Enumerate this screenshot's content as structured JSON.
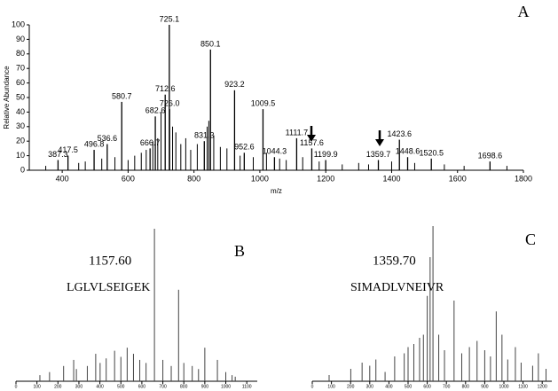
{
  "chart_data": [
    {
      "type": "bar",
      "panel": "A",
      "x_label": "m/z",
      "y_label": "Relative Abundance",
      "xlim": [
        300,
        1800
      ],
      "xticks": [
        400,
        600,
        800,
        1000,
        1200,
        1400,
        1600,
        1800
      ],
      "ylim": [
        0,
        100
      ],
      "yticks": [
        0,
        10,
        20,
        30,
        40,
        50,
        60,
        70,
        80,
        90,
        100
      ],
      "color": "#000000",
      "x": [
        387.3,
        417.5,
        496.8,
        536.6,
        580.7,
        666.7,
        682.6,
        712.6,
        725.1,
        726,
        831.3,
        850.1,
        923.2,
        952.6,
        1009.5,
        1044.3,
        1111.7,
        1157.6,
        1199.9,
        1359.7,
        1423.6,
        1448.6,
        1520.5,
        1698.6
      ],
      "labels": [
        "387.3",
        "417.5",
        "496.8",
        "536.6",
        "580.7",
        "666.7",
        "682.6",
        "712.6",
        "725.1",
        "726.0",
        "831.3",
        "850.1",
        "923.2",
        "952.6",
        "1009.5",
        "1044.3",
        "1111.7",
        "1157.6",
        "1199.9",
        "1359.7",
        "1423.6",
        "1448.6",
        "1520.5",
        "1698.6"
      ],
      "values": [
        7,
        10,
        14,
        18,
        47,
        15,
        37,
        52,
        100,
        42,
        20,
        83,
        55,
        12,
        42,
        9,
        22,
        15,
        7,
        7,
        21,
        9,
        8,
        6
      ],
      "minor_x": [
        350,
        450,
        470,
        520,
        560,
        600,
        620,
        640,
        655,
        675,
        690,
        700,
        735,
        745,
        760,
        775,
        790,
        810,
        840,
        845,
        860,
        880,
        900,
        940,
        980,
        1020,
        1060,
        1080,
        1130,
        1180,
        1250,
        1300,
        1330,
        1400,
        1470,
        1560,
        1620,
        1750
      ],
      "minor_values": [
        3,
        5,
        6,
        8,
        9,
        7,
        10,
        12,
        14,
        20,
        22,
        40,
        30,
        26,
        18,
        22,
        14,
        18,
        30,
        34,
        24,
        16,
        15,
        10,
        9,
        12,
        8,
        7,
        9,
        6,
        4,
        5,
        4,
        6,
        5,
        4,
        3,
        3
      ]
    },
    {
      "type": "bar",
      "panel": "B",
      "precursor": "1157.60",
      "sequence": "LGLVLSEIGEK",
      "xlim": [
        0,
        1150
      ],
      "xticks": [
        0,
        100,
        200,
        300,
        400,
        500,
        600,
        700,
        800,
        900,
        1000,
        1100
      ],
      "ylim": [
        0,
        100
      ],
      "color": "#444444",
      "x": [
        114,
        160,
        227,
        275,
        288,
        340,
        380,
        401,
        430,
        470,
        500,
        530,
        560,
        590,
        620,
        660,
        700,
        740,
        775,
        800,
        840,
        870,
        900,
        960,
        1000,
        1030,
        1045
      ],
      "values": [
        4,
        6,
        10,
        14,
        8,
        10,
        18,
        12,
        15,
        20,
        16,
        22,
        18,
        14,
        12,
        100,
        14,
        10,
        60,
        12,
        10,
        8,
        22,
        14,
        6,
        4,
        3
      ]
    },
    {
      "type": "bar",
      "panel": "C",
      "precursor": "1359.70",
      "sequence": "SIMADLVNEIVR",
      "xlim": [
        0,
        1250
      ],
      "xticks": [
        0,
        100,
        200,
        300,
        400,
        500,
        600,
        700,
        800,
        900,
        1000,
        1100,
        1200
      ],
      "ylim": [
        0,
        100
      ],
      "color": "#444444",
      "x": [
        88,
        201,
        260,
        300,
        332,
        380,
        430,
        480,
        500,
        530,
        560,
        580,
        600,
        615,
        630,
        660,
        690,
        740,
        780,
        820,
        860,
        900,
        930,
        960,
        990,
        1020,
        1060,
        1090,
        1150,
        1180,
        1220
      ],
      "values": [
        4,
        8,
        12,
        10,
        14,
        6,
        16,
        18,
        22,
        24,
        28,
        30,
        55,
        80,
        100,
        30,
        20,
        52,
        18,
        22,
        26,
        20,
        16,
        45,
        30,
        14,
        22,
        12,
        10,
        18,
        8
      ]
    }
  ]
}
